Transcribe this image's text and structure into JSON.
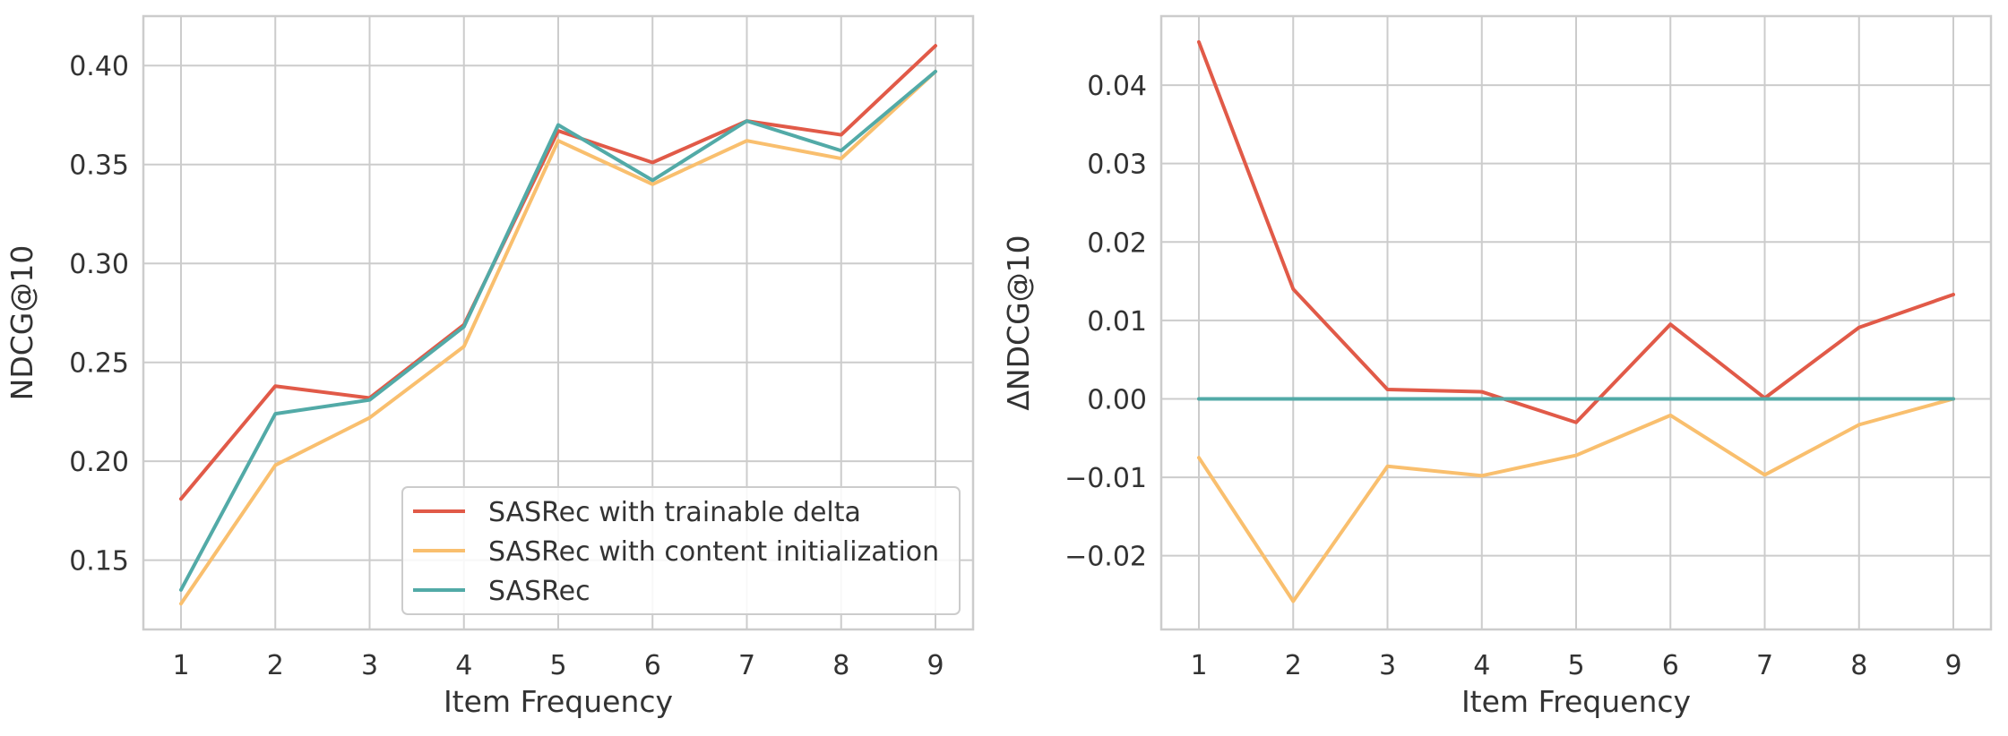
{
  "chart_data": [
    {
      "type": "line",
      "xlabel": "Item Frequency",
      "ylabel": "NDCG@10",
      "x": [
        1,
        2,
        3,
        4,
        5,
        6,
        7,
        8,
        9
      ],
      "ylim": [
        0.115,
        0.425
      ],
      "yticks": [
        0.15,
        0.2,
        0.25,
        0.3,
        0.35,
        0.4
      ],
      "ytick_labels": [
        "0.15",
        "0.20",
        "0.25",
        "0.30",
        "0.35",
        "0.40"
      ],
      "grid": true,
      "legend": "lower-right",
      "series": [
        {
          "name": "SASRec with trainable delta",
          "color": "#e15a48",
          "values": [
            0.181,
            0.238,
            0.232,
            0.269,
            0.367,
            0.351,
            0.372,
            0.365,
            0.41
          ]
        },
        {
          "name": "SASRec with content initialization",
          "color": "#f9bf6e",
          "values": [
            0.128,
            0.198,
            0.222,
            0.258,
            0.362,
            0.34,
            0.362,
            0.353,
            0.397
          ]
        },
        {
          "name": "SASRec",
          "color": "#52aaa7",
          "values": [
            0.135,
            0.224,
            0.231,
            0.268,
            0.37,
            0.342,
            0.372,
            0.357,
            0.397
          ]
        }
      ]
    },
    {
      "type": "line",
      "xlabel": "Item Frequency",
      "ylabel": "ΔNDCG@10",
      "x": [
        1,
        2,
        3,
        4,
        5,
        6,
        7,
        8,
        9
      ],
      "ylim": [
        -0.0294,
        0.0488
      ],
      "yticks": [
        -0.02,
        -0.01,
        0.0,
        0.01,
        0.02,
        0.03,
        0.04
      ],
      "ytick_labels": [
        "−0.02",
        "−0.01",
        "0.00",
        "0.01",
        "0.02",
        "0.03",
        "0.04"
      ],
      "grid": true,
      "series": [
        {
          "color": "#e15a48",
          "values": [
            0.0455,
            0.014,
            0.0012,
            0.0009,
            -0.003,
            0.0095,
            0.0001,
            0.0091,
            0.0133
          ]
        },
        {
          "color": "#f9bf6e",
          "values": [
            -0.0075,
            -0.0258,
            -0.0086,
            -0.0098,
            -0.0072,
            -0.0021,
            -0.0097,
            -0.0033,
            0.0
          ]
        },
        {
          "color": "#52aaa7",
          "values": [
            0,
            0,
            0,
            0,
            0,
            0,
            0,
            0,
            0
          ]
        }
      ]
    }
  ]
}
